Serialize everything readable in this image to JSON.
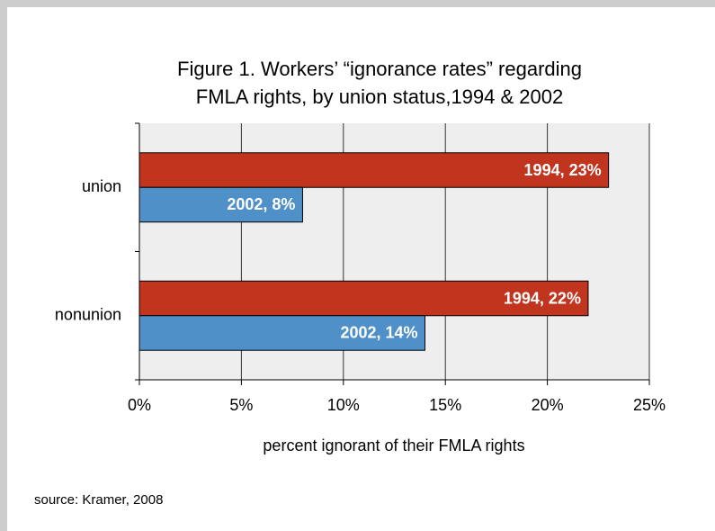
{
  "chart_data": {
    "type": "barh",
    "title": [
      "Figure 1. Workers’ “ignorance rates” regarding",
      "FMLA rights, by union status,1994 & 2002"
    ],
    "categories": [
      "union",
      "nonunion"
    ],
    "series": [
      {
        "color": "#c1341e",
        "values": [
          23,
          22
        ],
        "value_labels": [
          "1994, 23%",
          "1994, 22%"
        ]
      },
      {
        "color": "#4f90c9",
        "values": [
          8,
          14
        ],
        "value_labels": [
          "2002, 8%",
          "2002, 14%"
        ]
      }
    ],
    "xlabel": "percent ignorant of their FMLA rights",
    "xlim": [
      0,
      25
    ],
    "xticks": [
      {
        "value": 0,
        "label": "0%"
      },
      {
        "value": 5,
        "label": "5%"
      },
      {
        "value": 10,
        "label": "10%"
      },
      {
        "value": 15,
        "label": "15%"
      },
      {
        "value": 20,
        "label": "20%"
      },
      {
        "value": 25,
        "label": "25%"
      }
    ],
    "grid": true,
    "source": "source: Kramer, 2008"
  }
}
